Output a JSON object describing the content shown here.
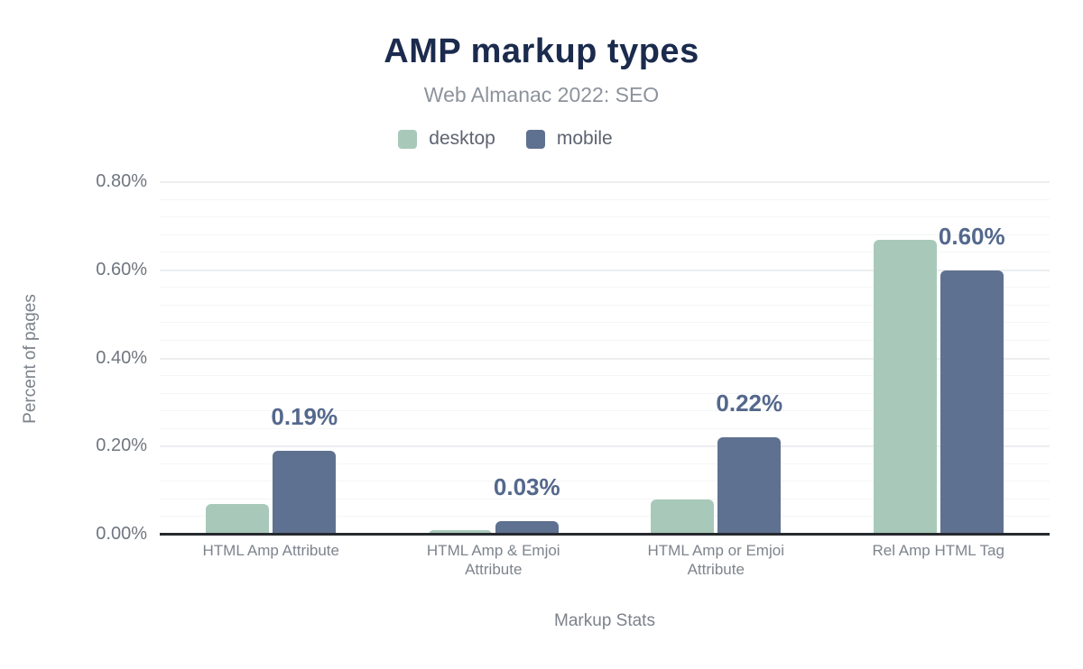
{
  "chart_data": {
    "type": "bar",
    "title": "AMP markup types",
    "subtitle": "Web Almanac 2022: SEO",
    "xlabel": "Markup Stats",
    "ylabel": "Percent of pages",
    "categories": [
      "HTML Amp Attribute",
      "HTML Amp & Emjoi Attribute",
      "HTML Amp or Emjoi Attribute",
      "Rel Amp HTML Tag"
    ],
    "series": [
      {
        "name": "desktop",
        "color": "#a8c9b9",
        "values": [
          0.07,
          0.01,
          0.08,
          0.67
        ]
      },
      {
        "name": "mobile",
        "color": "#5f7190",
        "values": [
          0.19,
          0.03,
          0.22,
          0.6
        ]
      }
    ],
    "data_labels": {
      "attached_to_series": "mobile",
      "values": [
        "0.19%",
        "0.03%",
        "0.22%",
        "0.60%"
      ]
    },
    "ylim": [
      0,
      0.8
    ],
    "yticks": [
      {
        "value": 0.0,
        "label": "0.00%"
      },
      {
        "value": 0.2,
        "label": "0.20%"
      },
      {
        "value": 0.4,
        "label": "0.40%"
      },
      {
        "value": 0.6,
        "label": "0.60%"
      },
      {
        "value": 0.8,
        "label": "0.80%"
      }
    ],
    "minor_gridline_step": 0.04,
    "grid": true,
    "legend_position": "top"
  },
  "colors": {
    "title": "#1b2b4d",
    "subtitle": "#8d939c",
    "legend_text": "#5d6470",
    "data_label": "#54688c",
    "tick_label": "#6f7680",
    "axis_title": "#7c828b",
    "axis_line": "#26292e",
    "gridline_major": "#eceef0",
    "gridline_minor": "#f4f5f6",
    "background": "#ffffff"
  }
}
